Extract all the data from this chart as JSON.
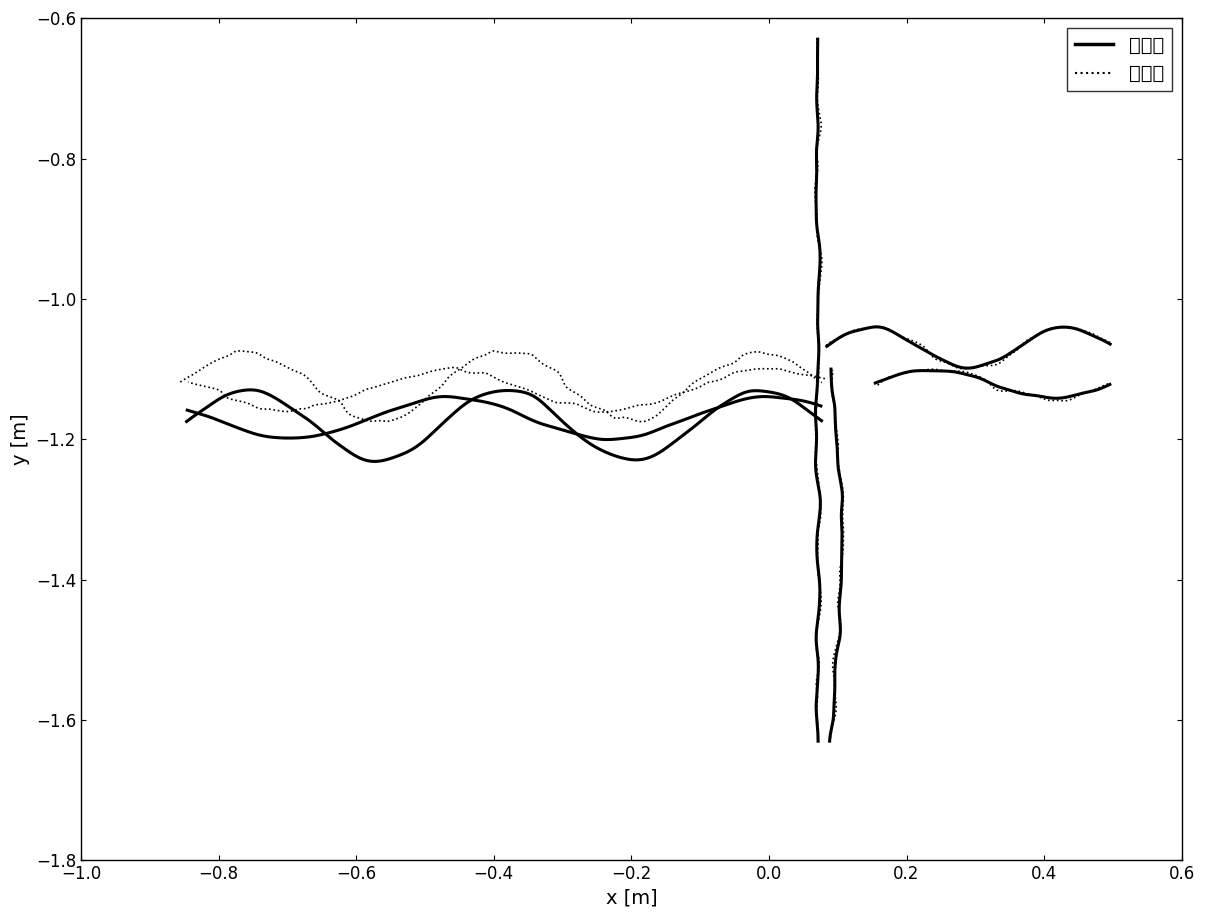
{
  "xlim": [
    -1.0,
    0.6
  ],
  "ylim": [
    -1.8,
    -0.6
  ],
  "xlabel": "x [m]",
  "ylabel": "y [m]",
  "legend_solid": "真实值",
  "legend_dotted": "估计值",
  "line_color": "#000000",
  "background_color": "#ffffff",
  "xticks": [
    -1.0,
    -0.8,
    -0.6,
    -0.4,
    -0.2,
    0.0,
    0.2,
    0.4,
    0.6
  ],
  "yticks": [
    -1.8,
    -1.6,
    -1.4,
    -1.2,
    -1.0,
    -0.8,
    -0.6
  ],
  "true_lw": 2.2,
  "est_lw": 1.2
}
